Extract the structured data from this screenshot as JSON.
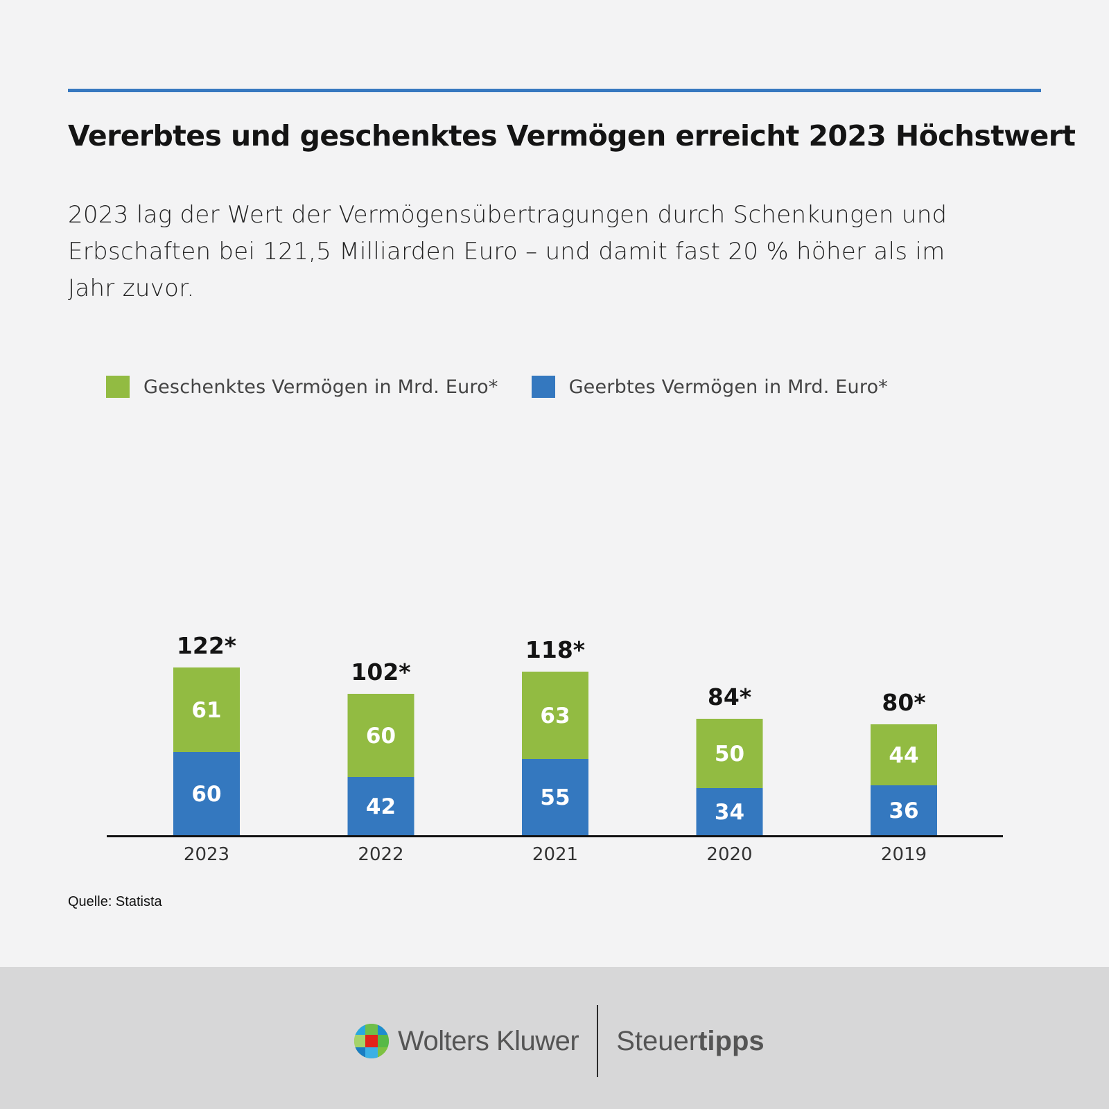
{
  "title": "Vererbtes und geschenktes Vermögen erreicht 2023 Höchstwert",
  "subtitle_lines": [
    "2023 lag der Wert der Vermögensübertragungen durch Schenkungen und",
    "Erbschaften bei 121,5 Milliarden Euro – und damit fast 20 % höher als im",
    "Jahr zuvor."
  ],
  "source": "Quelle: Statista",
  "footer": {
    "brand_left": "Wolters Kluwer",
    "brand_right_regular": "Steuer",
    "brand_right_bold": "tipps"
  },
  "colors": {
    "green": "#92bb42",
    "blue": "#3478bf",
    "rule": "#3778bf"
  },
  "chart_data": {
    "type": "bar",
    "stacked": true,
    "categories": [
      "2023",
      "2022",
      "2021",
      "2020",
      "2019"
    ],
    "series": [
      {
        "name": "Geerbtes Vermögen in Mrd. Euro*",
        "color": "#3478bf",
        "values": [
          60,
          42,
          55,
          34,
          36
        ]
      },
      {
        "name": "Geschenktes Vermögen in Mrd. Euro*",
        "color": "#92bb42",
        "values": [
          61,
          60,
          63,
          50,
          44
        ]
      }
    ],
    "totals": [
      "122*",
      "102*",
      "118*",
      "84*",
      "80*"
    ],
    "legend_order": [
      "Geschenktes Vermögen in Mrd. Euro*",
      "Geerbtes Vermögen in Mrd. Euro*"
    ],
    "legend_position": "top-left",
    "grid": false,
    "ylim": [
      0,
      122
    ]
  }
}
